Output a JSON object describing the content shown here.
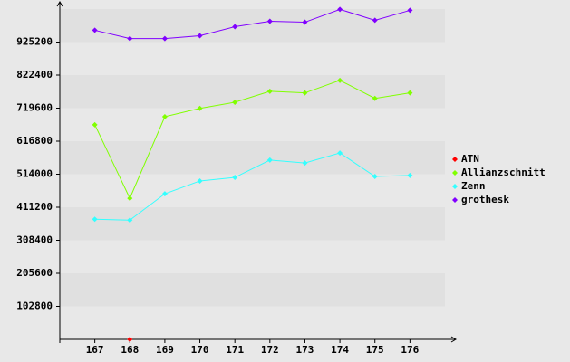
{
  "chart_data": {
    "type": "line",
    "x": [
      167,
      168,
      169,
      170,
      171,
      172,
      173,
      174,
      175,
      176
    ],
    "xlim": [
      166,
      177
    ],
    "xticks": [
      167,
      168,
      169,
      170,
      171,
      172,
      173,
      174,
      175,
      176
    ],
    "ylim": [
      0,
      1028000
    ],
    "yticks": [
      102800,
      205600,
      308400,
      411200,
      514000,
      616800,
      719600,
      822400,
      925200
    ],
    "legend": "right",
    "series": [
      {
        "name": "ATN",
        "color": "#ff0000",
        "values": [
          null,
          0,
          null,
          null,
          null,
          null,
          null,
          null,
          null,
          null
        ]
      },
      {
        "name": "Allianzschnitt",
        "color": "#80ff00",
        "values": [
          668000,
          439000,
          693000,
          719000,
          738000,
          772000,
          767000,
          806000,
          750000,
          767000
        ]
      },
      {
        "name": "Zenn",
        "color": "#33ffff",
        "values": [
          374000,
          371000,
          453000,
          493000,
          504000,
          558000,
          549000,
          580000,
          507000,
          510000
        ]
      },
      {
        "name": "grothesk",
        "color": "#8000ff",
        "values": [
          962000,
          936000,
          936000,
          945000,
          973000,
          990000,
          987000,
          1027000,
          993000,
          1024000
        ]
      }
    ]
  }
}
